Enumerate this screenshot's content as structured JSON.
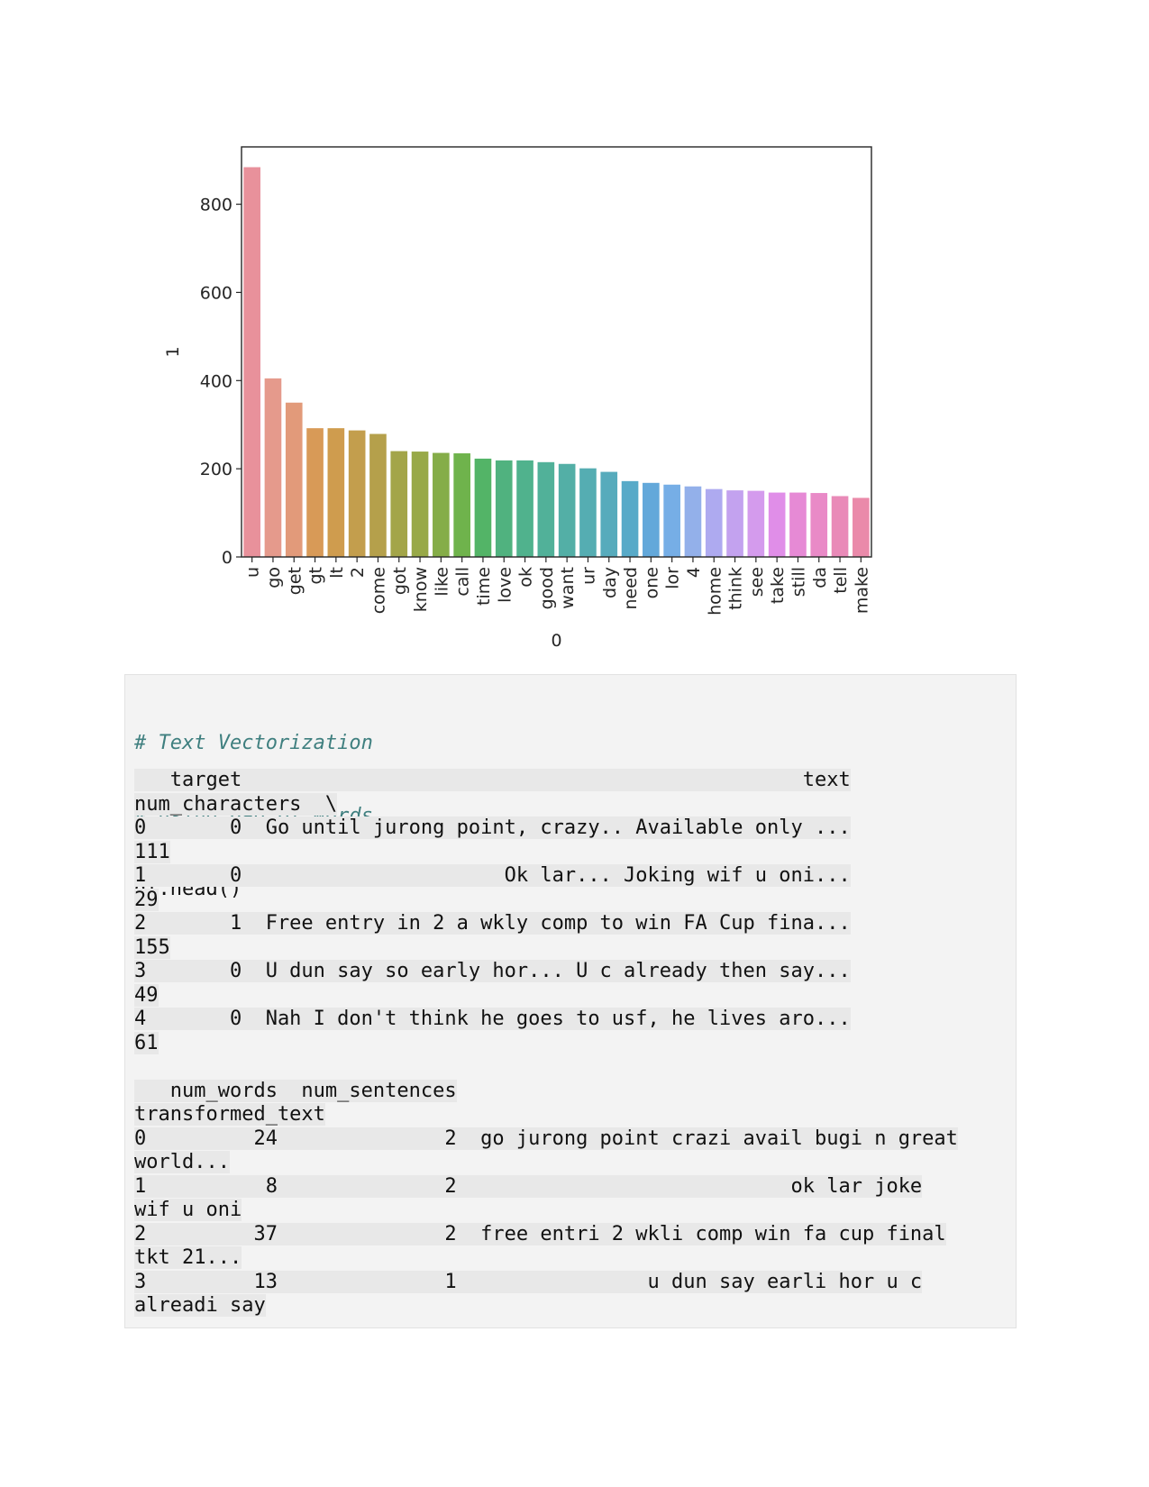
{
  "chart_data": {
    "type": "bar",
    "xlabel": "0",
    "ylabel": "1",
    "ylim": [
      0,
      930
    ],
    "yticks": [
      0,
      200,
      400,
      600,
      800
    ],
    "grid": false,
    "categories": [
      "u",
      "go",
      "get",
      "gt",
      "lt",
      "2",
      "come",
      "got",
      "know",
      "like",
      "call",
      "time",
      "love",
      "ok",
      "good",
      "want",
      "ur",
      "day",
      "need",
      "one",
      "lor",
      "4",
      "home",
      "think",
      "see",
      "take",
      "still",
      "da",
      "tell",
      "make"
    ],
    "values": [
      884,
      405,
      350,
      292,
      292,
      287,
      279,
      240,
      239,
      236,
      235,
      223,
      219,
      219,
      215,
      211,
      201,
      193,
      172,
      168,
      164,
      160,
      154,
      151,
      150,
      146,
      146,
      145,
      138,
      134
    ],
    "colors": [
      "#e8919b",
      "#e59a8c",
      "#e29a7a",
      "#d89a57",
      "#cf9c4e",
      "#c39e4d",
      "#b5a04b",
      "#a3a549",
      "#98a948",
      "#85ad48",
      "#6fb34c",
      "#53b467",
      "#50b27f",
      "#50b28d",
      "#51b199",
      "#53afa6",
      "#55adb2",
      "#57abbc",
      "#58aac8",
      "#63a8da",
      "#76aee6",
      "#93b0ea",
      "#aeaaf0",
      "#c3a2ef",
      "#d49bed",
      "#e08ee8",
      "#e68ad5",
      "#e98ac7",
      "#e98ab8",
      "#ea8aaa"
    ]
  },
  "code": {
    "comment1": "# Text Vectorization",
    "comment2": "# using Bag of Words",
    "call": "df.head()"
  },
  "output": {
    "lines": [
      "   target                                               text",
      "num_characters  \\",
      "0       0  Go until jurong point, crazy.. Available only ...",
      "111",
      "1       0                      Ok lar... Joking wif u oni...",
      "29",
      "2       1  Free entry in 2 a wkly comp to win FA Cup fina...",
      "155",
      "3       0  U dun say so early hor... U c already then say...",
      "49",
      "4       0  Nah I don't think he goes to usf, he lives aro...",
      "61",
      "",
      "   num_words  num_sentences",
      "transformed_text",
      "0         24              2  go jurong point crazi avail bugi n great",
      "world...",
      "1          8              2                            ok lar joke",
      "wif u oni",
      "2         37              2  free entri 2 wkli comp win fa cup final",
      "tkt 21...",
      "3         13              1                u dun say earli hor u c",
      "alreadi say"
    ]
  }
}
